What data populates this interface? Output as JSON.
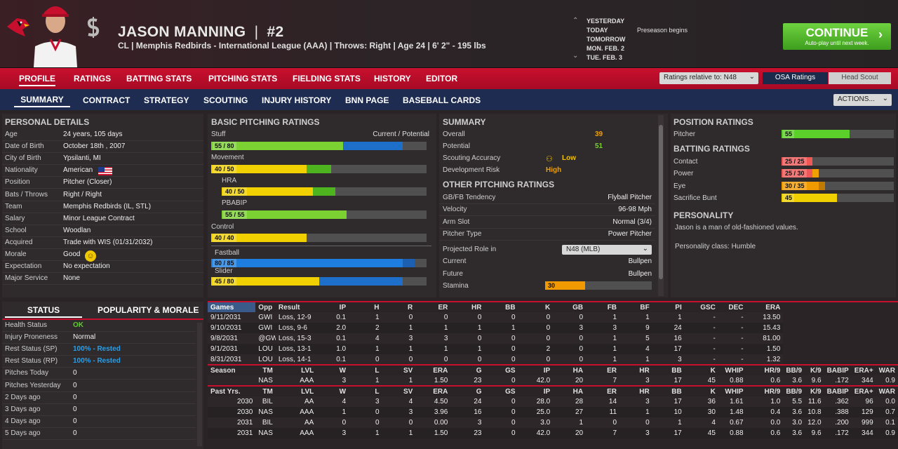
{
  "player": {
    "name": "JASON MANNING",
    "sep": "|",
    "number": "#2",
    "info": "CL | Memphis Redbirds - International League (AAA)  |  Throws: Right  |  Age 24  |  6' 2\" - 195 lbs"
  },
  "calendar": {
    "days": [
      "YESTERDAY",
      "TODAY",
      "TOMORROW",
      "MON. FEB. 2",
      "TUE. FEB. 3"
    ],
    "event": "Preseason begins"
  },
  "continue": {
    "label": "CONTINUE",
    "sub": "Auto-play until next week."
  },
  "nav1": [
    "PROFILE",
    "RATINGS",
    "BATTING STATS",
    "PITCHING STATS",
    "FIELDING STATS",
    "HISTORY",
    "EDITOR"
  ],
  "ratings_select": "Ratings relative to: N48",
  "osa_label": "OSA Ratings",
  "hs_label": "Head Scout",
  "nav2": [
    "SUMMARY",
    "CONTRACT",
    "STRATEGY",
    "SCOUTING",
    "INJURY HISTORY",
    "BNN PAGE",
    "BASEBALL CARDS"
  ],
  "actions_label": "ACTIONS...",
  "personal": {
    "title": "PERSONAL DETAILS",
    "rows": [
      [
        "Age",
        "24 years, 105 days"
      ],
      [
        "Date of Birth",
        "October 18th , 2007"
      ],
      [
        "City of Birth",
        "Ypsilanti, MI"
      ],
      [
        "Nationality",
        "American"
      ],
      [
        "Position",
        "Pitcher (Closer)"
      ],
      [
        "Bats / Throws",
        "Right / Right"
      ],
      [
        "Team",
        "Memphis Redbirds (IL, STL)"
      ],
      [
        "Salary",
        "Minor League Contract"
      ],
      [
        "School",
        "Woodlan"
      ],
      [
        "Acquired",
        "Trade with WIS (01/31/2032)"
      ],
      [
        "Morale",
        "Good"
      ],
      [
        "Expectation",
        "No expectation"
      ],
      [
        "Major Service",
        "None"
      ]
    ]
  },
  "pitching": {
    "title": "BASIC PITCHING RATINGS",
    "col": "Current / Potential",
    "bars": [
      {
        "name": "Stuff",
        "label": "55 / 80",
        "cur": 55,
        "pot": 80,
        "c1": "#7cd132",
        "c2": "#1d6fc9"
      },
      {
        "name": "Movement",
        "label": "40 / 50",
        "cur": 40,
        "pot": 50,
        "c1": "#f0d000",
        "c2": "#4db31e"
      },
      {
        "name": "HRA",
        "label": "40 / 50",
        "cur": 40,
        "pot": 50,
        "c1": "#f0d000",
        "c2": "#4db31e"
      },
      {
        "name": "PBABIP",
        "label": "55 / 55",
        "cur": 55,
        "pot": 55,
        "c1": "#7cd132",
        "c2": "#7cd132"
      },
      {
        "name": "Control",
        "label": "40 / 40",
        "cur": 40,
        "pot": 40,
        "c1": "#f0d000",
        "c2": "#f0d000"
      },
      {
        "name": "Fastball",
        "label": "80 / 85",
        "cur": 80,
        "pot": 85,
        "c1": "#1d7ee0",
        "c2": "#1d5fb0"
      },
      {
        "name": "Slider",
        "label": "45 / 80",
        "cur": 45,
        "pot": 80,
        "c1": "#f0d000",
        "c2": "#1d6fc9"
      }
    ]
  },
  "summary": {
    "title": "SUMMARY",
    "rows": [
      [
        "Overall",
        "39"
      ],
      [
        "Potential",
        "51"
      ],
      [
        "Scouting Accuracy",
        "Low"
      ],
      [
        "Development Risk",
        "High"
      ]
    ],
    "other_title": "OTHER PITCHING RATINGS",
    "other": [
      [
        "GB/FB Tendency",
        "Flyball Pitcher"
      ],
      [
        "Velocity",
        "96-98 Mph"
      ],
      [
        "Arm Slot",
        "Normal (3/4)"
      ],
      [
        "Pitcher Type",
        "Power Pitcher"
      ]
    ],
    "proj_label": "Projected Role in",
    "proj_value": "N48 (MLB)",
    "roles": [
      [
        "Current",
        "Bullpen"
      ],
      [
        "Future",
        "Bullpen"
      ]
    ],
    "stamina_label": "Stamina",
    "stamina": 30
  },
  "position": {
    "title": "POSITION RATINGS",
    "rows": [
      {
        "name": "Pitcher",
        "label": "55",
        "cur": 55,
        "pot": 55
      }
    ]
  },
  "batting": {
    "title": "BATTING RATINGS",
    "rows": [
      {
        "name": "Contact",
        "label": "25 / 25",
        "cur": 25,
        "pot": 25
      },
      {
        "name": "Power",
        "label": "25 / 30",
        "cur": 25,
        "pot": 30
      },
      {
        "name": "Eye",
        "label": "30 / 35",
        "cur": 30,
        "pot": 35
      },
      {
        "name": "Sacrifice Bunt",
        "label": "45",
        "cur": 45,
        "pot": 45
      }
    ]
  },
  "personality": {
    "title": "PERSONALITY",
    "text": "Jason is a man of old-fashioned values.",
    "cls": "Personality class: Humble"
  },
  "status": {
    "tab1": "STATUS",
    "tab2": "POPULARITY & MORALE",
    "rows": [
      [
        "Health Status",
        "OK"
      ],
      [
        "Injury Proneness",
        "Normal"
      ],
      [
        "Rest Status (SP)",
        "100% - Rested"
      ],
      [
        "Rest Status (RP)",
        "100% - Rested"
      ],
      [
        "Pitches Today",
        "0"
      ],
      [
        "Pitches Yesterday",
        "0"
      ],
      [
        "2 Days ago",
        "0"
      ],
      [
        "3 Days ago",
        "0"
      ],
      [
        "4 Days ago",
        "0"
      ],
      [
        "5 Days ago",
        "0"
      ]
    ]
  },
  "games": {
    "headers": [
      "Games",
      "Opp",
      "Result",
      "IP",
      "H",
      "R",
      "ER",
      "HR",
      "BB",
      "K",
      "GB",
      "FB",
      "BF",
      "PI",
      "GSC",
      "DEC",
      "ERA"
    ],
    "rows": [
      [
        "9/11/2031",
        "GWI",
        "Loss, 12-9",
        "0.1",
        "1",
        "0",
        "0",
        "0",
        "0",
        "0",
        "0",
        "1",
        "1",
        "1",
        "-",
        "-",
        "13.50"
      ],
      [
        "9/10/2031",
        "GWI",
        "Loss, 9-6",
        "2.0",
        "2",
        "1",
        "1",
        "1",
        "1",
        "0",
        "3",
        "3",
        "9",
        "24",
        "-",
        "-",
        "15.43"
      ],
      [
        "9/8/2031",
        "@GWI",
        "Loss, 15-3",
        "0.1",
        "4",
        "3",
        "3",
        "0",
        "0",
        "0",
        "0",
        "1",
        "5",
        "16",
        "-",
        "-",
        "81.00"
      ],
      [
        "9/1/2031",
        "LOU",
        "Loss, 13-1",
        "1.0",
        "1",
        "1",
        "1",
        "1",
        "0",
        "2",
        "0",
        "1",
        "4",
        "17",
        "-",
        "-",
        "1.50"
      ],
      [
        "8/31/2031",
        "LOU",
        "Loss, 14-1",
        "0.1",
        "0",
        "0",
        "0",
        "0",
        "0",
        "0",
        "0",
        "1",
        "1",
        "3",
        "-",
        "-",
        "1.32"
      ]
    ]
  },
  "season": {
    "headers": [
      "Season",
      "TM",
      "LVL",
      "W",
      "L",
      "SV",
      "ERA",
      "G",
      "GS",
      "IP",
      "HA",
      "ER",
      "HR",
      "BB",
      "K",
      "WHIP",
      "HR/9",
      "BB/9",
      "K/9",
      "BABIP",
      "ERA+",
      "WAR"
    ],
    "rows": [
      [
        "",
        "NAS",
        "AAA",
        "3",
        "1",
        "1",
        "1.50",
        "23",
        "0",
        "42.0",
        "20",
        "7",
        "3",
        "17",
        "45",
        "0.88",
        "0.6",
        "3.6",
        "9.6",
        ".172",
        "344",
        "0.9"
      ]
    ]
  },
  "past": {
    "headers": [
      "Past Yrs.",
      "TM",
      "LVL",
      "W",
      "L",
      "SV",
      "ERA",
      "G",
      "GS",
      "IP",
      "HA",
      "ER",
      "HR",
      "BB",
      "K",
      "WHIP",
      "HR/9",
      "BB/9",
      "K/9",
      "BABIP",
      "ERA+",
      "WAR"
    ],
    "rows": [
      [
        "2030",
        "BIL",
        "AA",
        "4",
        "3",
        "4",
        "4.50",
        "24",
        "0",
        "28.0",
        "28",
        "14",
        "3",
        "17",
        "36",
        "1.61",
        "1.0",
        "5.5",
        "11.6",
        ".362",
        "96",
        "0.0"
      ],
      [
        "2030",
        "NAS",
        "AAA",
        "1",
        "0",
        "3",
        "3.96",
        "16",
        "0",
        "25.0",
        "27",
        "11",
        "1",
        "10",
        "30",
        "1.48",
        "0.4",
        "3.6",
        "10.8",
        ".388",
        "129",
        "0.7"
      ],
      [
        "2031",
        "BIL",
        "AA",
        "0",
        "0",
        "0",
        "0.00",
        "3",
        "0",
        "3.0",
        "1",
        "0",
        "0",
        "1",
        "4",
        "0.67",
        "0.0",
        "3.0",
        "12.0",
        ".200",
        "999",
        "0.1"
      ],
      [
        "2031",
        "NAS",
        "AAA",
        "3",
        "1",
        "1",
        "1.50",
        "23",
        "0",
        "42.0",
        "20",
        "7",
        "3",
        "17",
        "45",
        "0.88",
        "0.6",
        "3.6",
        "9.6",
        ".172",
        "344",
        "0.9"
      ]
    ]
  },
  "colors": {
    "accent": "#c8102e",
    "navy": "#1e2c52",
    "green": "#7cd132",
    "blue": "#1d6fc9",
    "yellow": "#f0d000",
    "red": "#f05050",
    "orange": "#f0a000"
  }
}
